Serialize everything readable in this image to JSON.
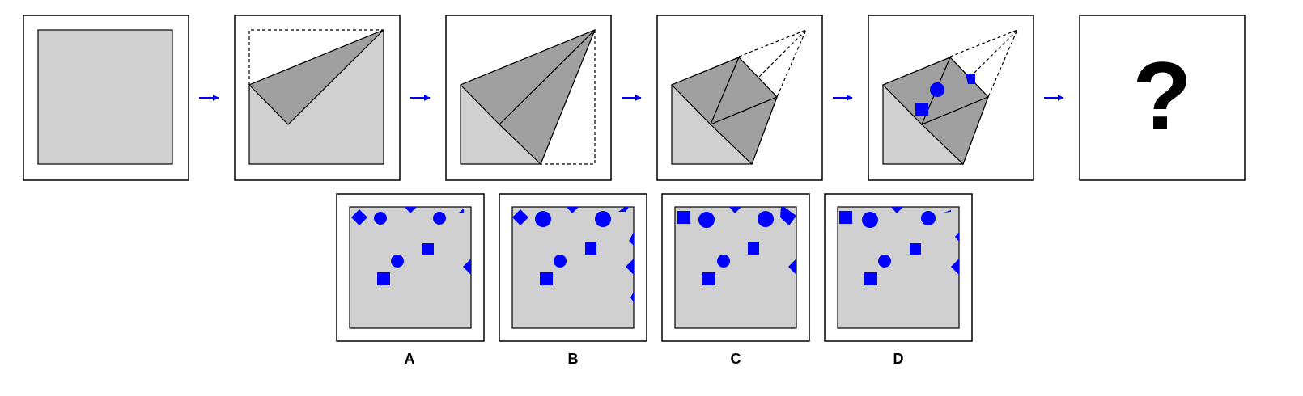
{
  "puzzle": {
    "question_mark": "?",
    "options": [
      {
        "label": "A"
      },
      {
        "label": "B"
      },
      {
        "label": "C"
      },
      {
        "label": "D"
      }
    ]
  },
  "colors": {
    "paper": "#d0d0d0",
    "folded": "#a0a0a0",
    "marker": "#0000ff",
    "arrow": "#0000ff",
    "outline": "#000000",
    "frame_bg": "#ffffff"
  }
}
